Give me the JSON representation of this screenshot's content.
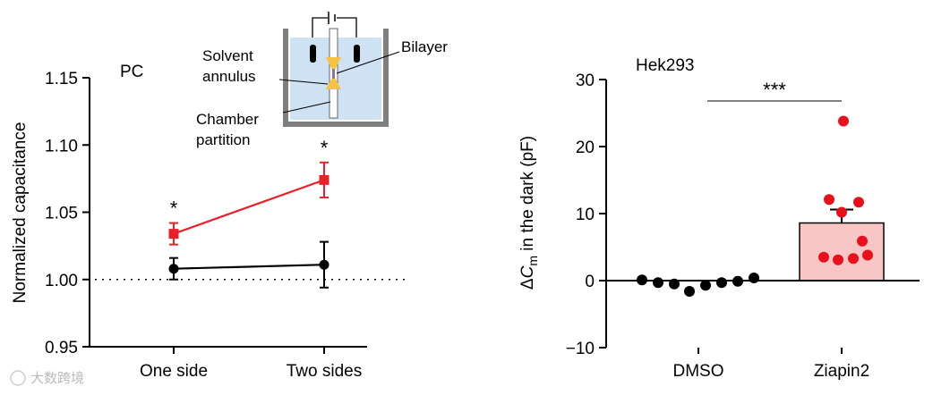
{
  "watermark": "大数跨境",
  "chart_data": [
    {
      "type": "line",
      "title": "PC",
      "xlabel": "",
      "ylabel": "Normalized capacitance",
      "categories": [
        "One side",
        "Two sides"
      ],
      "ylim": [
        0.95,
        1.15
      ],
      "yticks": [
        "0.95",
        "1.00",
        "1.05",
        "1.10",
        "1.15"
      ],
      "reference_line": 1.0,
      "series": [
        {
          "color": "#e8202a",
          "marker": "square",
          "values": [
            1.034,
            1.074
          ],
          "errors": [
            0.008,
            0.013
          ]
        },
        {
          "color": "#000000",
          "marker": "circle",
          "values": [
            1.008,
            1.011
          ],
          "errors": [
            0.008,
            0.017
          ]
        }
      ],
      "significance": [
        "*",
        "*"
      ],
      "inset": {
        "labels": {
          "solvent": "Solvent",
          "annulus": "annulus",
          "bilayer": "Bilayer",
          "chamber": "Chamber",
          "partition": "partition"
        },
        "colors": {
          "water": "#cfe2f3",
          "wall": "#7f7f7f",
          "annulus": "#f5c242",
          "bilayer": "#8a6fb3"
        }
      }
    },
    {
      "type": "bar",
      "title": "Hek293",
      "xlabel": "",
      "ylabel": "ΔCm in the dark (pF)",
      "ylabel_parts": {
        "delta": "Δ",
        "symbol": "C",
        "sub": "m",
        "rest": " in the dark (pF)"
      },
      "categories": [
        "DMSO",
        "Ziapin2"
      ],
      "ylim": [
        -10,
        30
      ],
      "yticks": [
        "−10",
        "0",
        "10",
        "20",
        "30"
      ],
      "bars": [
        {
          "category": "DMSO",
          "value": 0,
          "error": 0.3,
          "fill": "#ffffff",
          "points": [
            0.1,
            -0.3,
            -0.5,
            -1.6,
            -0.7,
            -0.3,
            -0.1,
            0.4
          ],
          "point_color": "#000000"
        },
        {
          "category": "Ziapin2",
          "value": 8.6,
          "error": 2.0,
          "fill": "#f9c6c6",
          "points": [
            23.8,
            12.1,
            11.7,
            10.2,
            5.9,
            3.5,
            3.1,
            3.3,
            3.8
          ],
          "point_color": "#e8101a"
        }
      ],
      "significance": "***"
    }
  ]
}
